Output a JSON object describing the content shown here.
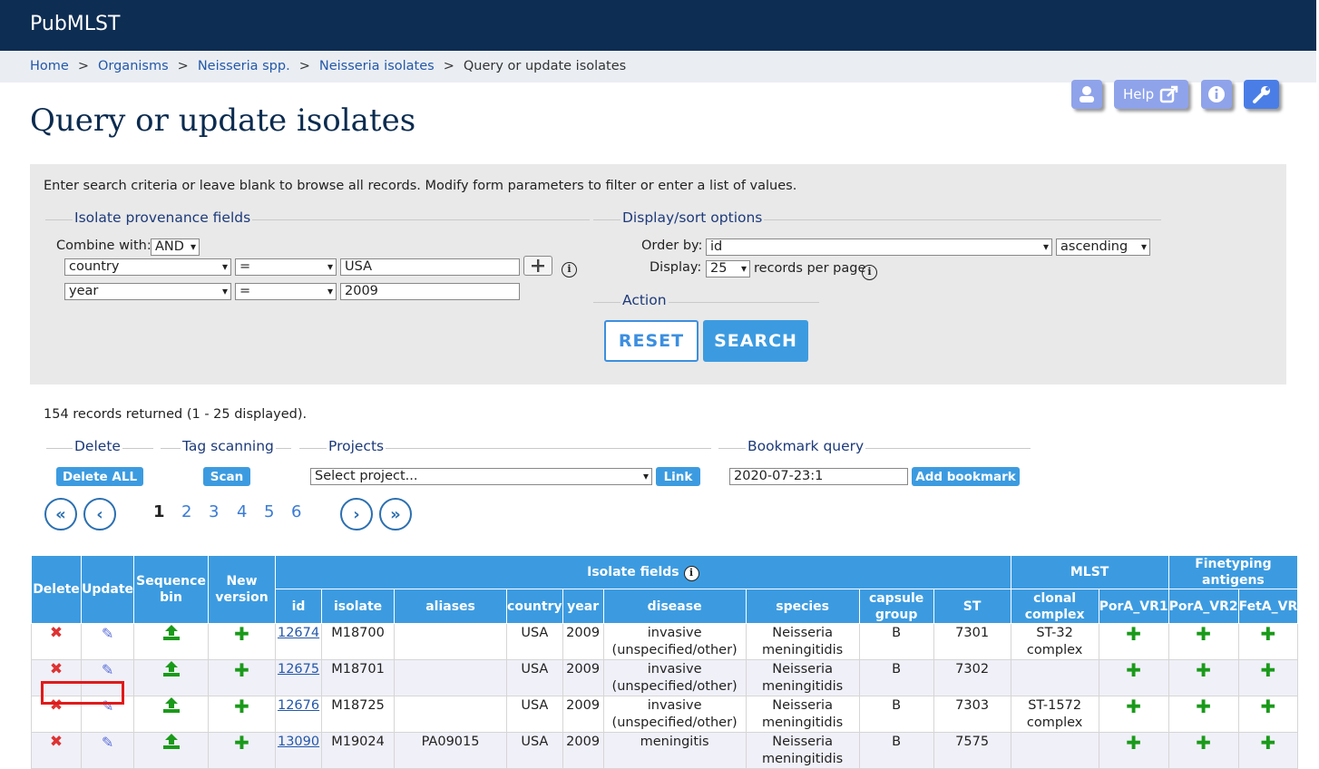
{
  "header": {
    "site_title": "PubMLST"
  },
  "breadcrumb": [
    {
      "label": "Home"
    },
    {
      "label": "Organisms"
    },
    {
      "label": "Neisseria spp."
    },
    {
      "label": "Neisseria isolates"
    }
  ],
  "breadcrumb_current": "Query or update isolates",
  "top_icons": {
    "help_label": "Help"
  },
  "page_title": "Query or update isolates",
  "form": {
    "intro": "Enter search criteria or leave blank to browse all records. Modify form parameters to filter or enter a list of values.",
    "provenance_legend": "Isolate provenance fields",
    "combine_label": "Combine with:",
    "combine_value": "AND",
    "rows": [
      {
        "field": "country",
        "operator": "=",
        "value": "USA"
      },
      {
        "field": "year",
        "operator": "=",
        "value": "2009"
      }
    ],
    "display_legend": "Display/sort options",
    "order_by_label": "Order by:",
    "order_by_value": "id",
    "order_dir": "ascending",
    "display_label": "Display:",
    "display_value": "25",
    "records_per_page": "records per page",
    "action_legend": "Action",
    "reset_label": "RESET",
    "search_label": "SEARCH"
  },
  "records_returned": "154 records returned (1 - 25 displayed).",
  "tools": {
    "delete_legend": "Delete",
    "delete_all_label": "Delete ALL",
    "tag_legend": "Tag scanning",
    "scan_label": "Scan",
    "projects_legend": "Projects",
    "project_select": "Select project...",
    "link_label": "Link",
    "bookmark_legend": "Bookmark query",
    "bookmark_value": "2020-07-23:1",
    "add_bookmark_label": "Add bookmark"
  },
  "pagination": {
    "pages": [
      "1",
      "2",
      "3",
      "4",
      "5",
      "6"
    ],
    "current": "1"
  },
  "table": {
    "group_headers": {
      "isolate_fields": "Isolate fields",
      "mlst": "MLST",
      "finetyping": "Finetyping antigens"
    },
    "col_delete": "Delete",
    "col_update": "Update",
    "col_seqbin": "Sequence bin",
    "col_newver": "New version",
    "columns": [
      "id",
      "isolate",
      "aliases",
      "country",
      "year",
      "disease",
      "species",
      "capsule group",
      "ST",
      "clonal complex",
      "PorA_VR1",
      "PorA_VR2",
      "FetA_VR"
    ],
    "rows": [
      {
        "id": "12674",
        "isolate": "M18700",
        "aliases": "",
        "country": "USA",
        "year": "2009",
        "disease": "invasive (unspecified/other)",
        "species": "Neisseria meningitidis",
        "capsule": "B",
        "st": "7301",
        "cc": "ST-32 complex"
      },
      {
        "id": "12675",
        "isolate": "M18701",
        "aliases": "",
        "country": "USA",
        "year": "2009",
        "disease": "invasive (unspecified/other)",
        "species": "Neisseria meningitidis",
        "capsule": "B",
        "st": "7302",
        "cc": ""
      },
      {
        "id": "12676",
        "isolate": "M18725",
        "aliases": "",
        "country": "USA",
        "year": "2009",
        "disease": "invasive (unspecified/other)",
        "species": "Neisseria meningitidis",
        "capsule": "B",
        "st": "7303",
        "cc": "ST-1572 complex"
      },
      {
        "id": "13090",
        "isolate": "M19024",
        "aliases": "PA09015",
        "country": "USA",
        "year": "2009",
        "disease": "meningitis",
        "species": "Neisseria meningitidis",
        "capsule": "B",
        "st": "7575",
        "cc": ""
      }
    ]
  }
}
